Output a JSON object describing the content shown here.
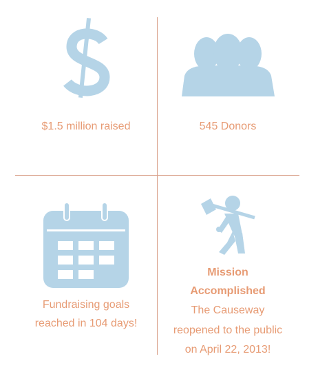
{
  "cells": [
    {
      "caption": [
        "$1.5 million raised"
      ]
    },
    {
      "caption": [
        "545 Donors"
      ]
    },
    {
      "caption": [
        "Fundraising goals",
        "reached in 104 days!"
      ]
    },
    {
      "heading": [
        "Mission",
        "Accomplished"
      ],
      "caption": [
        "The Causeway",
        "reopened to the public",
        "on April 22, 2013!"
      ]
    }
  ]
}
